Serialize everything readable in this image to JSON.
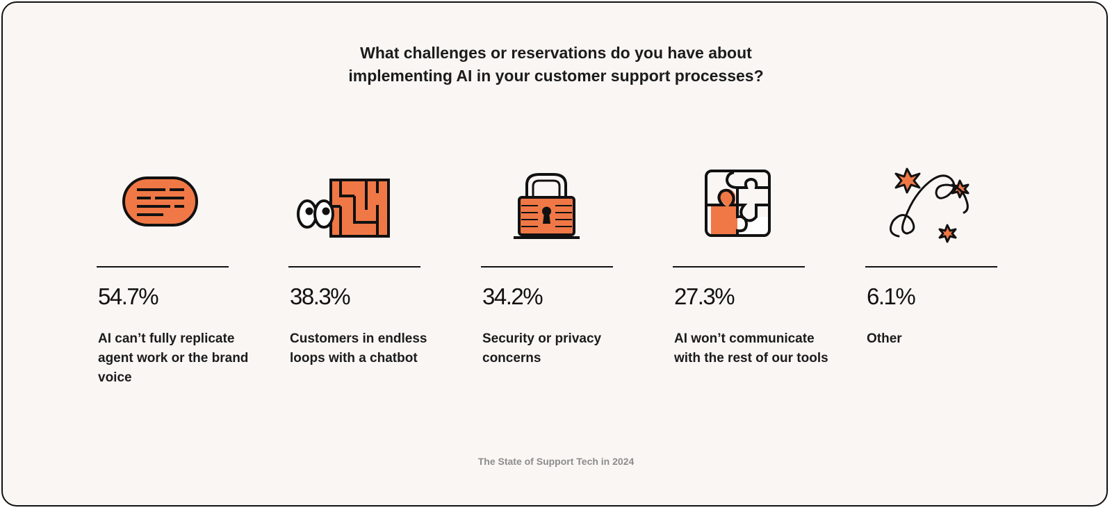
{
  "colors": {
    "accent": "#f07846",
    "ink": "#111111",
    "background": "#f9f6f4",
    "footer_text": "#8c8c8c"
  },
  "chart_data": {
    "type": "bar",
    "title_lines": [
      "What challenges or reservations do you have about",
      "implementing AI in your customer support processes?"
    ],
    "categories": [
      "AI can’t fully replicate agent work or the brand voice",
      "Customers in endless loops with a chatbot",
      "Security or privacy concerns",
      "AI won’t communicate with the  rest of our tools",
      "Other"
    ],
    "values": [
      54.7,
      38.3,
      34.2,
      27.3,
      6.1
    ],
    "value_labels": [
      "54.7%",
      "38.3%",
      "34.2%",
      "27.3%",
      "6.1%"
    ],
    "icons": [
      "speech-bubble-icon",
      "maze-with-eyes-icon",
      "padlock-icon",
      "puzzle-pieces-icon",
      "sparkle-squiggle-icon"
    ],
    "unit": "%"
  },
  "footer": {
    "source": "The State of Support Tech in 2024"
  }
}
